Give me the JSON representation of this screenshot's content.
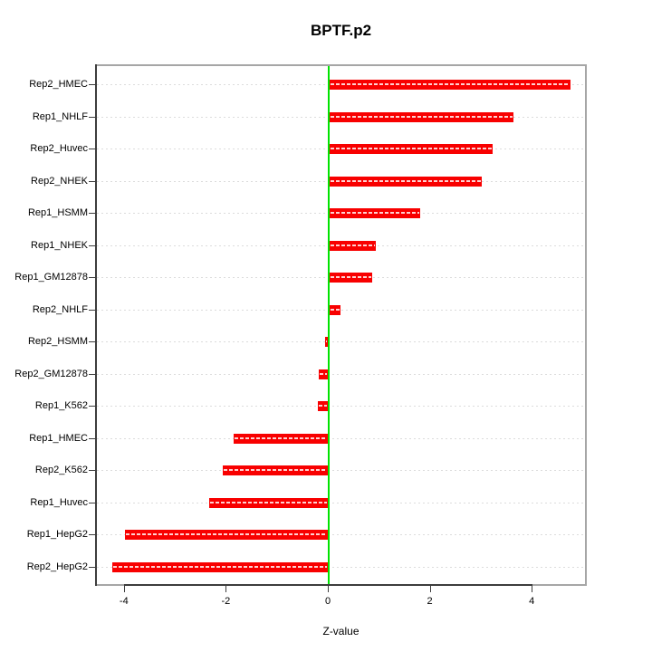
{
  "title": "BPTF.p2",
  "chart_data": {
    "type": "bar",
    "orientation": "horizontal",
    "title": "BPTF.p2",
    "xlabel": "Z-value",
    "ylabel": "",
    "categories": [
      "Rep2_HMEC",
      "Rep1_NHLF",
      "Rep2_Huvec",
      "Rep2_NHEK",
      "Rep1_HSMM",
      "Rep1_NHEK",
      "Rep1_GM12878",
      "Rep2_NHLF",
      "Rep2_HSMM",
      "Rep2_GM12878",
      "Rep1_K562",
      "Rep1_HMEC",
      "Rep2_K562",
      "Rep1_Huvec",
      "Rep1_HepG2",
      "Rep2_HepG2"
    ],
    "values": [
      4.72,
      3.61,
      3.19,
      2.99,
      1.77,
      0.91,
      0.84,
      0.21,
      -0.05,
      -0.18,
      -0.2,
      -1.84,
      -2.06,
      -2.32,
      -3.98,
      -4.23
    ],
    "x_ticks": [
      -4,
      -2,
      0,
      2,
      4
    ],
    "xlim": [
      -4.56,
      5.07
    ],
    "grid": "dotted horizontal line per category",
    "legend": "none",
    "colors": {
      "bar": "#f80000",
      "bar_dash": "#ffffff",
      "zero_line": "#00e300",
      "gridline": "#dcdcdc",
      "box_border": "#a6a6a6",
      "axis_line": "#3d3d3d"
    }
  }
}
